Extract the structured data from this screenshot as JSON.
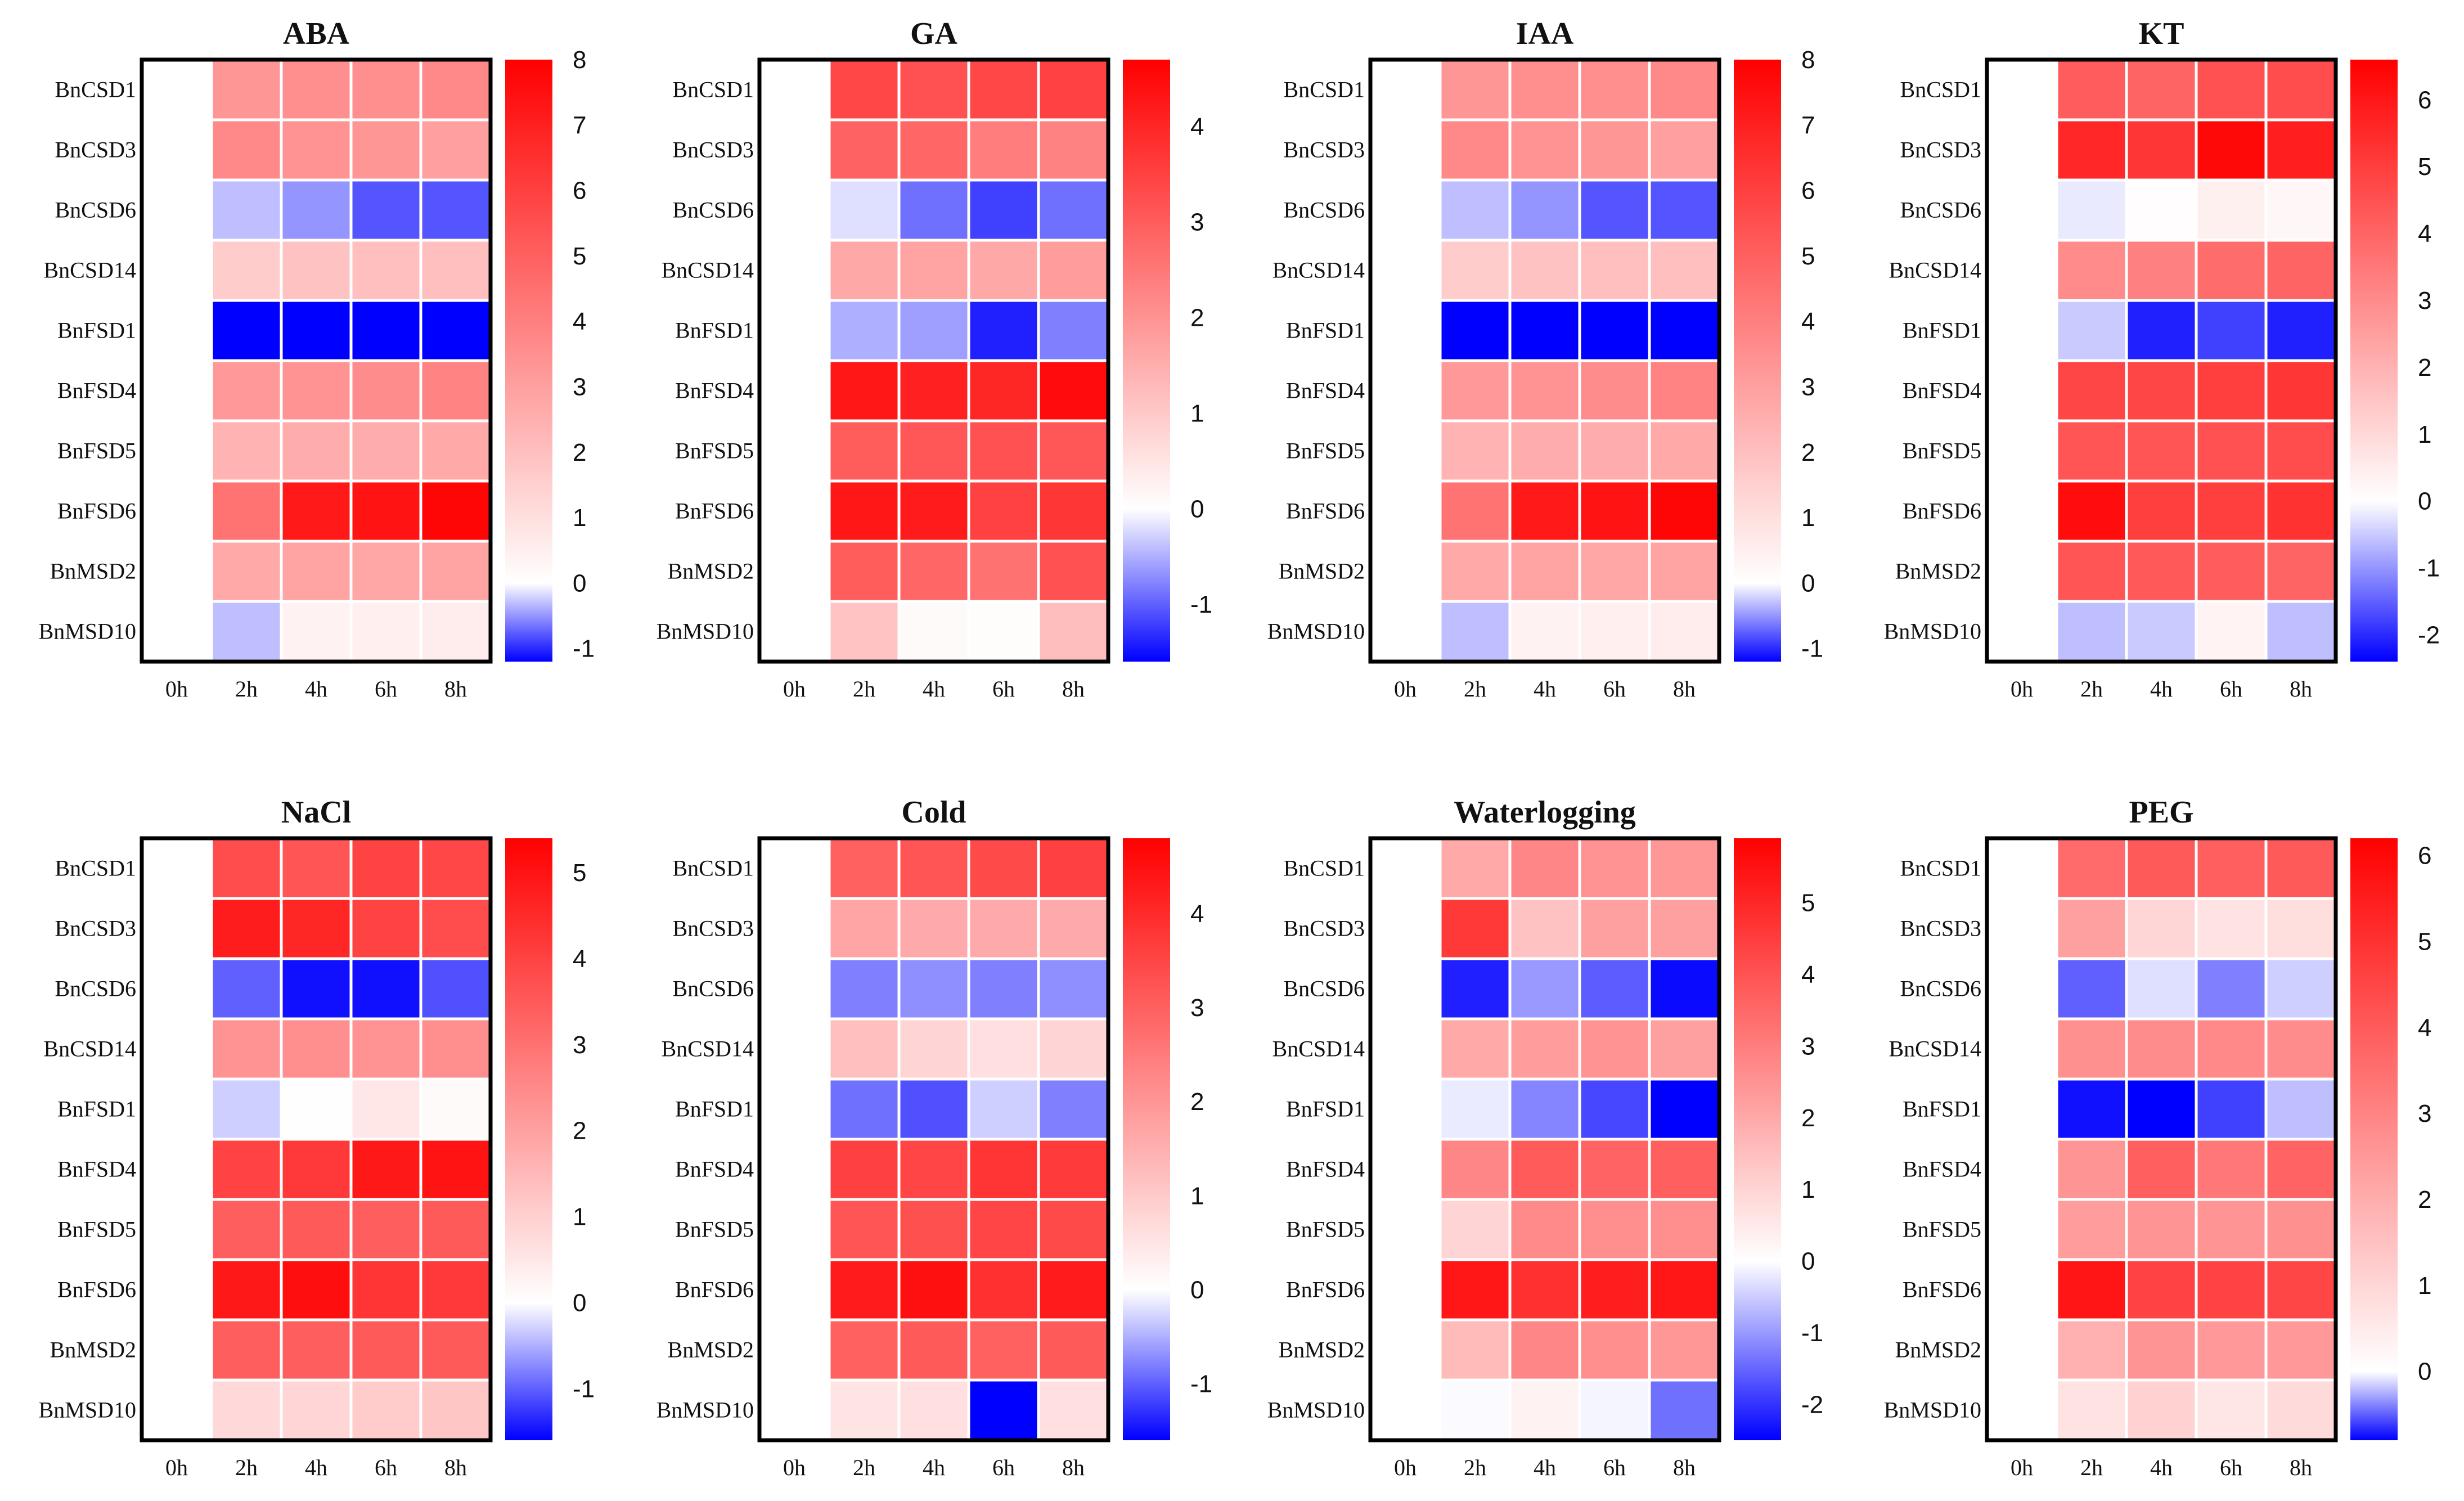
{
  "figure_title": "",
  "chart_data": [
    {
      "type": "heatmap",
      "title": "ABA",
      "rows": [
        "BnCSD1",
        "BnCSD3",
        "BnCSD6",
        "BnCSD14",
        "BnFSD1",
        "BnFSD4",
        "BnFSD5",
        "BnFSD6",
        "BnMSD2",
        "BnMSD10"
      ],
      "columns": [
        "0h",
        "2h",
        "4h",
        "6h",
        "8h"
      ],
      "values": [
        [
          0,
          3.3,
          3.5,
          3.5,
          3.7
        ],
        [
          0,
          3.7,
          3.4,
          3.3,
          3.0
        ],
        [
          0,
          -0.3,
          -0.5,
          -0.8,
          -0.8
        ],
        [
          0,
          1.6,
          1.9,
          2.0,
          2.0
        ],
        [
          0,
          -1.2,
          -1.2,
          -1.2,
          -1.2
        ],
        [
          0,
          3.2,
          3.4,
          3.6,
          3.9
        ],
        [
          0,
          2.4,
          2.6,
          2.6,
          2.7
        ],
        [
          0,
          4.4,
          7.2,
          7.4,
          7.8
        ],
        [
          0,
          2.7,
          2.9,
          2.8,
          2.9
        ],
        [
          0,
          -0.3,
          0.4,
          0.5,
          0.6
        ]
      ],
      "colorbar": {
        "min": -1.2,
        "max": 8,
        "ticks": [
          "8",
          "7",
          "6",
          "5",
          "4",
          "3",
          "2",
          "1",
          "0",
          "-1"
        ]
      }
    },
    {
      "type": "heatmap",
      "title": "GA",
      "rows": [
        "BnCSD1",
        "BnCSD3",
        "BnCSD6",
        "BnCSD14",
        "BnFSD1",
        "BnFSD4",
        "BnFSD5",
        "BnFSD6",
        "BnMSD2",
        "BnMSD10"
      ],
      "columns": [
        "0h",
        "2h",
        "4h",
        "6h",
        "8h"
      ],
      "values": [
        [
          0,
          3.4,
          3.2,
          3.4,
          3.5
        ],
        [
          0,
          2.9,
          2.8,
          2.4,
          2.3
        ],
        [
          0,
          -0.2,
          -0.9,
          -1.2,
          -0.9
        ],
        [
          0,
          1.6,
          1.7,
          1.6,
          1.8
        ],
        [
          0,
          -0.5,
          -0.6,
          -1.4,
          -0.8
        ],
        [
          0,
          4.3,
          4.1,
          4.0,
          4.5
        ],
        [
          0,
          3.0,
          3.1,
          3.2,
          3.1
        ],
        [
          0,
          4.3,
          4.2,
          3.5,
          3.7
        ],
        [
          0,
          3.0,
          2.8,
          2.6,
          3.2
        ],
        [
          0,
          1.1,
          0.1,
          0.05,
          1.2
        ]
      ],
      "colorbar": {
        "min": -1.6,
        "max": 4.7,
        "ticks": [
          "4",
          "3",
          "2",
          "1",
          "0",
          "-1"
        ]
      }
    },
    {
      "type": "heatmap",
      "title": "IAA",
      "rows": [
        "BnCSD1",
        "BnCSD3",
        "BnCSD6",
        "BnCSD14",
        "BnFSD1",
        "BnFSD4",
        "BnFSD5",
        "BnFSD6",
        "BnMSD2",
        "BnMSD10"
      ],
      "columns": [
        "0h",
        "2h",
        "4h",
        "6h",
        "8h"
      ],
      "values": [
        [
          0,
          3.3,
          3.5,
          3.5,
          3.7
        ],
        [
          0,
          3.7,
          3.4,
          3.3,
          3.0
        ],
        [
          0,
          -0.3,
          -0.5,
          -0.8,
          -0.8
        ],
        [
          0,
          1.6,
          1.9,
          2.0,
          2.0
        ],
        [
          0,
          -1.2,
          -1.2,
          -1.2,
          -1.2
        ],
        [
          0,
          3.2,
          3.4,
          3.6,
          3.9
        ],
        [
          0,
          2.4,
          2.6,
          2.6,
          2.7
        ],
        [
          0,
          4.4,
          7.2,
          7.4,
          7.8
        ],
        [
          0,
          2.7,
          2.9,
          2.8,
          2.9
        ],
        [
          0,
          -0.3,
          0.4,
          0.5,
          0.6
        ]
      ],
      "colorbar": {
        "min": -1.2,
        "max": 8,
        "ticks": [
          "8",
          "7",
          "6",
          "5",
          "4",
          "3",
          "2",
          "1",
          "0",
          "-1"
        ]
      }
    },
    {
      "type": "heatmap",
      "title": "KT",
      "rows": [
        "BnCSD1",
        "BnCSD3",
        "BnCSD6",
        "BnCSD14",
        "BnFSD1",
        "BnFSD4",
        "BnFSD5",
        "BnFSD6",
        "BnMSD2",
        "BnMSD10"
      ],
      "columns": [
        "0h",
        "2h",
        "4h",
        "6h",
        "8h"
      ],
      "values": [
        [
          0,
          4.2,
          4.0,
          4.5,
          4.6
        ],
        [
          0,
          5.6,
          5.2,
          6.4,
          5.8
        ],
        [
          0,
          -0.2,
          0.05,
          0.4,
          0.2
        ],
        [
          0,
          3.0,
          3.3,
          3.8,
          4.0
        ],
        [
          0,
          -0.5,
          -2.1,
          -1.8,
          -2.1
        ],
        [
          0,
          4.8,
          4.8,
          5.0,
          5.2
        ],
        [
          0,
          4.4,
          4.4,
          4.5,
          4.6
        ],
        [
          0,
          6.3,
          5.0,
          5.0,
          5.3
        ],
        [
          0,
          4.4,
          4.3,
          4.2,
          4.0
        ],
        [
          0,
          -0.6,
          -0.5,
          0.3,
          -0.6
        ]
      ],
      "colorbar": {
        "min": -2.4,
        "max": 6.6,
        "ticks": [
          "6",
          "5",
          "4",
          "3",
          "2",
          "1",
          "0",
          "-1",
          "-2"
        ]
      }
    },
    {
      "type": "heatmap",
      "title": "NaCl",
      "rows": [
        "BnCSD1",
        "BnCSD3",
        "BnCSD6",
        "BnCSD14",
        "BnFSD1",
        "BnFSD4",
        "BnFSD5",
        "BnFSD6",
        "BnMSD2",
        "BnMSD10"
      ],
      "columns": [
        "0h",
        "2h",
        "4h",
        "6h",
        "8h"
      ],
      "values": [
        [
          0,
          3.8,
          3.6,
          4.0,
          3.9
        ],
        [
          0,
          4.8,
          4.6,
          4.0,
          3.8
        ],
        [
          0,
          -1.0,
          -1.5,
          -1.5,
          -1.1
        ],
        [
          0,
          2.3,
          2.4,
          2.3,
          2.4
        ],
        [
          0,
          -0.3,
          0.02,
          0.5,
          0.1
        ],
        [
          0,
          4.0,
          4.2,
          4.9,
          5.0
        ],
        [
          0,
          3.4,
          3.5,
          3.4,
          3.5
        ],
        [
          0,
          4.9,
          5.1,
          4.3,
          4.2
        ],
        [
          0,
          3.4,
          3.4,
          3.5,
          3.5
        ],
        [
          0,
          0.8,
          0.9,
          1.1,
          1.2
        ]
      ],
      "colorbar": {
        "min": -1.6,
        "max": 5.4,
        "ticks": [
          "5",
          "4",
          "3",
          "2",
          "1",
          "0",
          "-1"
        ]
      }
    },
    {
      "type": "heatmap",
      "title": "Cold",
      "rows": [
        "BnCSD1",
        "BnCSD3",
        "BnCSD6",
        "BnCSD14",
        "BnFSD1",
        "BnFSD4",
        "BnFSD5",
        "BnFSD6",
        "BnMSD2",
        "BnMSD10"
      ],
      "columns": [
        "0h",
        "2h",
        "4h",
        "6h",
        "8h"
      ],
      "values": [
        [
          0,
          3.0,
          3.2,
          3.4,
          3.6
        ],
        [
          0,
          1.7,
          1.6,
          1.6,
          1.6
        ],
        [
          0,
          -0.8,
          -0.7,
          -0.8,
          -0.7
        ],
        [
          0,
          1.2,
          0.8,
          0.6,
          0.8
        ],
        [
          0,
          -0.9,
          -1.1,
          -0.3,
          -0.8
        ],
        [
          0,
          3.6,
          3.5,
          3.8,
          3.7
        ],
        [
          0,
          3.2,
          3.3,
          3.5,
          3.4
        ],
        [
          0,
          4.3,
          4.5,
          3.9,
          4.3
        ],
        [
          0,
          3.0,
          3.1,
          3.0,
          3.1
        ],
        [
          0,
          0.5,
          0.6,
          -1.6,
          0.6
        ]
      ],
      "colorbar": {
        "min": -1.6,
        "max": 4.8,
        "ticks": [
          "4",
          "3",
          "2",
          "1",
          "0",
          "-1"
        ]
      }
    },
    {
      "type": "heatmap",
      "title": "Waterlogging",
      "rows": [
        "BnCSD1",
        "BnCSD3",
        "BnCSD6",
        "BnCSD14",
        "BnFSD1",
        "BnFSD4",
        "BnFSD5",
        "BnFSD6",
        "BnMSD2",
        "BnMSD10"
      ],
      "columns": [
        "0h",
        "2h",
        "4h",
        "6h",
        "8h"
      ],
      "values": [
        [
          0,
          2.0,
          2.8,
          2.5,
          2.4
        ],
        [
          0,
          4.6,
          1.4,
          2.2,
          2.2
        ],
        [
          0,
          -2.2,
          -1.0,
          -1.6,
          -2.4
        ],
        [
          0,
          2.0,
          2.3,
          2.5,
          2.2
        ],
        [
          0,
          -0.2,
          -1.2,
          -1.8,
          -2.5
        ],
        [
          0,
          2.8,
          3.8,
          3.6,
          3.7
        ],
        [
          0,
          1.0,
          2.7,
          2.6,
          2.6
        ],
        [
          0,
          5.4,
          4.8,
          5.2,
          5.4
        ],
        [
          0,
          1.6,
          2.8,
          2.6,
          2.4
        ],
        [
          0,
          -0.05,
          0.3,
          -0.1,
          -1.4
        ]
      ],
      "colorbar": {
        "min": -2.5,
        "max": 5.9,
        "ticks": [
          "5",
          "4",
          "3",
          "2",
          "1",
          "0",
          "-1",
          "-2"
        ]
      }
    },
    {
      "type": "heatmap",
      "title": "PEG",
      "rows": [
        "BnCSD1",
        "BnCSD3",
        "BnCSD6",
        "BnCSD14",
        "BnFSD1",
        "BnFSD4",
        "BnFSD5",
        "BnFSD6",
        "BnMSD2",
        "BnMSD10"
      ],
      "columns": [
        "0h",
        "2h",
        "4h",
        "6h",
        "8h"
      ],
      "values": [
        [
          0,
          3.6,
          4.0,
          3.9,
          4.0
        ],
        [
          0,
          2.3,
          1.0,
          0.7,
          0.8
        ],
        [
          0,
          -0.5,
          -0.1,
          -0.4,
          -0.15
        ],
        [
          0,
          2.7,
          2.8,
          2.9,
          2.8
        ],
        [
          0,
          -0.75,
          -0.8,
          -0.6,
          -0.2
        ],
        [
          0,
          2.6,
          3.9,
          3.3,
          3.8
        ],
        [
          0,
          2.4,
          2.6,
          2.6,
          2.7
        ],
        [
          0,
          5.7,
          4.6,
          4.6,
          4.5
        ],
        [
          0,
          1.9,
          2.6,
          2.5,
          2.5
        ],
        [
          0,
          0.7,
          1.1,
          0.6,
          0.9
        ]
      ],
      "colorbar": {
        "min": -0.8,
        "max": 6.2,
        "ticks": [
          "6",
          "5",
          "4",
          "3",
          "2",
          "1",
          "0"
        ]
      }
    }
  ]
}
